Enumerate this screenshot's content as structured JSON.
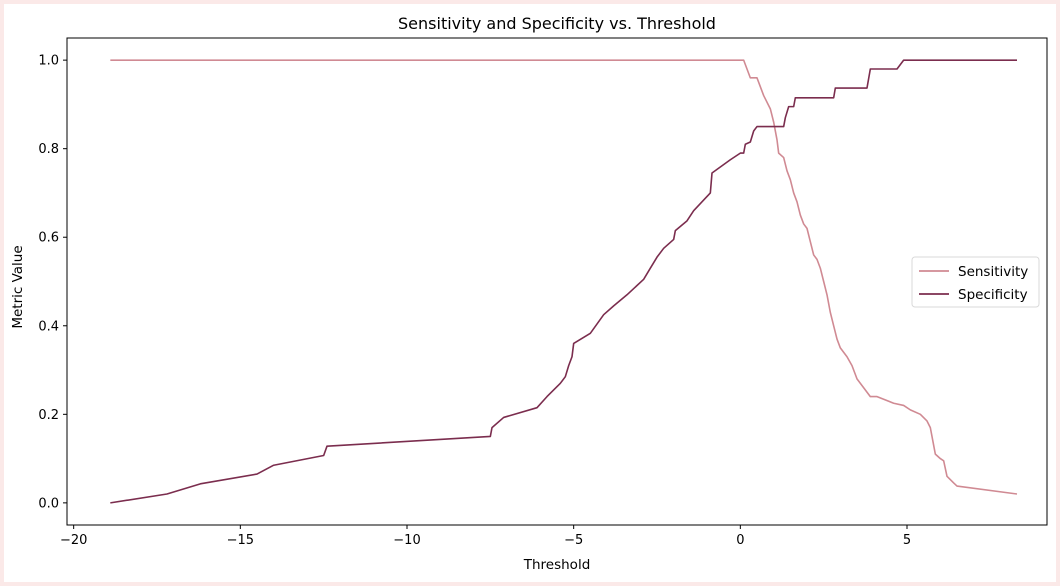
{
  "chart_data": {
    "type": "line",
    "title": "Sensitivity and Specificity vs. Threshold",
    "xlabel": "Threshold",
    "ylabel": "Metric Value",
    "xlim": [
      -20.2,
      9.2
    ],
    "ylim": [
      -0.05,
      1.05
    ],
    "xticks": [
      -20,
      -15,
      -10,
      -5,
      0,
      5
    ],
    "xtick_labels": [
      "−20",
      "−15",
      "−10",
      "−5",
      "0",
      "5"
    ],
    "yticks": [
      0.0,
      0.2,
      0.4,
      0.6,
      0.8,
      1.0
    ],
    "ytick_labels": [
      "0.0",
      "0.2",
      "0.4",
      "0.6",
      "0.8",
      "1.0"
    ],
    "grid": false,
    "legend_position": "center-right",
    "series": [
      {
        "name": "Sensitivity",
        "color": "#d08a93",
        "points": [
          [
            -18.9,
            1.0
          ],
          [
            0.1,
            1.0
          ],
          [
            0.2,
            0.98
          ],
          [
            0.3,
            0.96
          ],
          [
            0.5,
            0.96
          ],
          [
            0.6,
            0.94
          ],
          [
            0.7,
            0.92
          ],
          [
            0.9,
            0.89
          ],
          [
            1.0,
            0.86
          ],
          [
            1.1,
            0.82
          ],
          [
            1.15,
            0.79
          ],
          [
            1.3,
            0.78
          ],
          [
            1.4,
            0.75
          ],
          [
            1.5,
            0.73
          ],
          [
            1.6,
            0.7
          ],
          [
            1.7,
            0.68
          ],
          [
            1.8,
            0.65
          ],
          [
            1.9,
            0.63
          ],
          [
            2.0,
            0.62
          ],
          [
            2.1,
            0.59
          ],
          [
            2.2,
            0.56
          ],
          [
            2.3,
            0.55
          ],
          [
            2.4,
            0.53
          ],
          [
            2.5,
            0.5
          ],
          [
            2.6,
            0.47
          ],
          [
            2.7,
            0.43
          ],
          [
            2.8,
            0.4
          ],
          [
            2.9,
            0.37
          ],
          [
            3.0,
            0.35
          ],
          [
            3.2,
            0.33
          ],
          [
            3.35,
            0.31
          ],
          [
            3.5,
            0.28
          ],
          [
            3.7,
            0.26
          ],
          [
            3.9,
            0.24
          ],
          [
            4.1,
            0.24
          ],
          [
            4.6,
            0.225
          ],
          [
            4.9,
            0.22
          ],
          [
            5.1,
            0.21
          ],
          [
            5.4,
            0.2
          ],
          [
            5.6,
            0.185
          ],
          [
            5.7,
            0.17
          ],
          [
            5.8,
            0.13
          ],
          [
            5.85,
            0.11
          ],
          [
            6.0,
            0.1
          ],
          [
            6.1,
            0.095
          ],
          [
            6.2,
            0.06
          ],
          [
            6.4,
            0.045
          ],
          [
            6.5,
            0.038
          ],
          [
            8.3,
            0.02
          ]
        ]
      },
      {
        "name": "Specificity",
        "color": "#7b2d4e",
        "points": [
          [
            -18.9,
            0.0
          ],
          [
            -17.2,
            0.02
          ],
          [
            -16.2,
            0.043
          ],
          [
            -14.5,
            0.065
          ],
          [
            -14.0,
            0.085
          ],
          [
            -12.5,
            0.107
          ],
          [
            -12.4,
            0.128
          ],
          [
            -7.5,
            0.15
          ],
          [
            -7.45,
            0.17
          ],
          [
            -7.1,
            0.193
          ],
          [
            -6.1,
            0.215
          ],
          [
            -5.8,
            0.24
          ],
          [
            -5.6,
            0.255
          ],
          [
            -5.4,
            0.27
          ],
          [
            -5.25,
            0.285
          ],
          [
            -5.15,
            0.31
          ],
          [
            -5.05,
            0.33
          ],
          [
            -5.0,
            0.36
          ],
          [
            -4.5,
            0.383
          ],
          [
            -4.1,
            0.425
          ],
          [
            -3.8,
            0.445
          ],
          [
            -3.4,
            0.47
          ],
          [
            -2.9,
            0.505
          ],
          [
            -2.7,
            0.53
          ],
          [
            -2.5,
            0.555
          ],
          [
            -2.3,
            0.575
          ],
          [
            -2.0,
            0.595
          ],
          [
            -1.95,
            0.615
          ],
          [
            -1.6,
            0.637
          ],
          [
            -1.4,
            0.66
          ],
          [
            -0.9,
            0.7
          ],
          [
            -0.85,
            0.745
          ],
          [
            -0.3,
            0.775
          ],
          [
            0.0,
            0.79
          ],
          [
            0.1,
            0.79
          ],
          [
            0.15,
            0.81
          ],
          [
            0.3,
            0.815
          ],
          [
            0.4,
            0.84
          ],
          [
            0.5,
            0.85
          ],
          [
            1.3,
            0.85
          ],
          [
            1.35,
            0.87
          ],
          [
            1.45,
            0.895
          ],
          [
            1.6,
            0.895
          ],
          [
            1.65,
            0.915
          ],
          [
            2.8,
            0.915
          ],
          [
            2.85,
            0.937
          ],
          [
            3.8,
            0.937
          ],
          [
            3.9,
            0.98
          ],
          [
            4.7,
            0.98
          ],
          [
            4.9,
            1.0
          ],
          [
            8.3,
            1.0
          ]
        ]
      }
    ]
  }
}
